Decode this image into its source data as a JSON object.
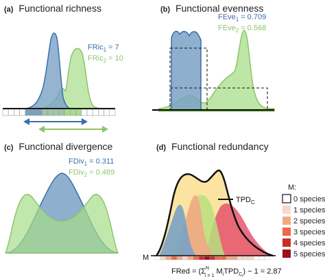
{
  "colors": {
    "species1": "#7aa1c4",
    "species2": "#a8dd8a",
    "species1_line": "#3a6fa8",
    "species2_line": "#8cc46a",
    "redundancy_0": "#ffffff",
    "redundancy_1": "#f6d9c8",
    "redundancy_2": "#f3a984",
    "redundancy_3": "#ea6a4a",
    "redundancy_4": "#cc2a24",
    "redundancy_5": "#99111a"
  },
  "panel_a": {
    "letter": "(a)",
    "title": "Functional richness",
    "stat1_label": "FRic",
    "stat1_sub": "1",
    "stat1_value": " = 7",
    "stat2_label": "FRic",
    "stat2_sub": "2",
    "stat2_value": " = 10"
  },
  "panel_b": {
    "letter": "(b)",
    "title": "Functional evenness",
    "stat1_label": "FEve",
    "stat1_sub": "1",
    "stat1_value": " = 0.709",
    "stat2_label": "FEve",
    "stat2_sub": "2",
    "stat2_value": " = 0.568"
  },
  "panel_c": {
    "letter": "(c)",
    "title": "Functional divergence",
    "stat1_label": "FDiv",
    "stat1_sub": "1",
    "stat1_value": " = 0.311",
    "stat2_label": "FDiv",
    "stat2_sub": "2",
    "stat2_value": " = 0.489"
  },
  "panel_d": {
    "letter": "(d)",
    "title": "Functional redundancy",
    "tpd_label": "TPD",
    "tpd_sub": "C",
    "m_axis_label": "M",
    "formula_lhs": "FRed = ",
    "formula_value": "− 1 = 2.87",
    "legend": {
      "title": "M:",
      "items": [
        "0 species",
        "1 species",
        "2 species",
        "3 species",
        "4 species",
        "5 species"
      ]
    }
  }
}
